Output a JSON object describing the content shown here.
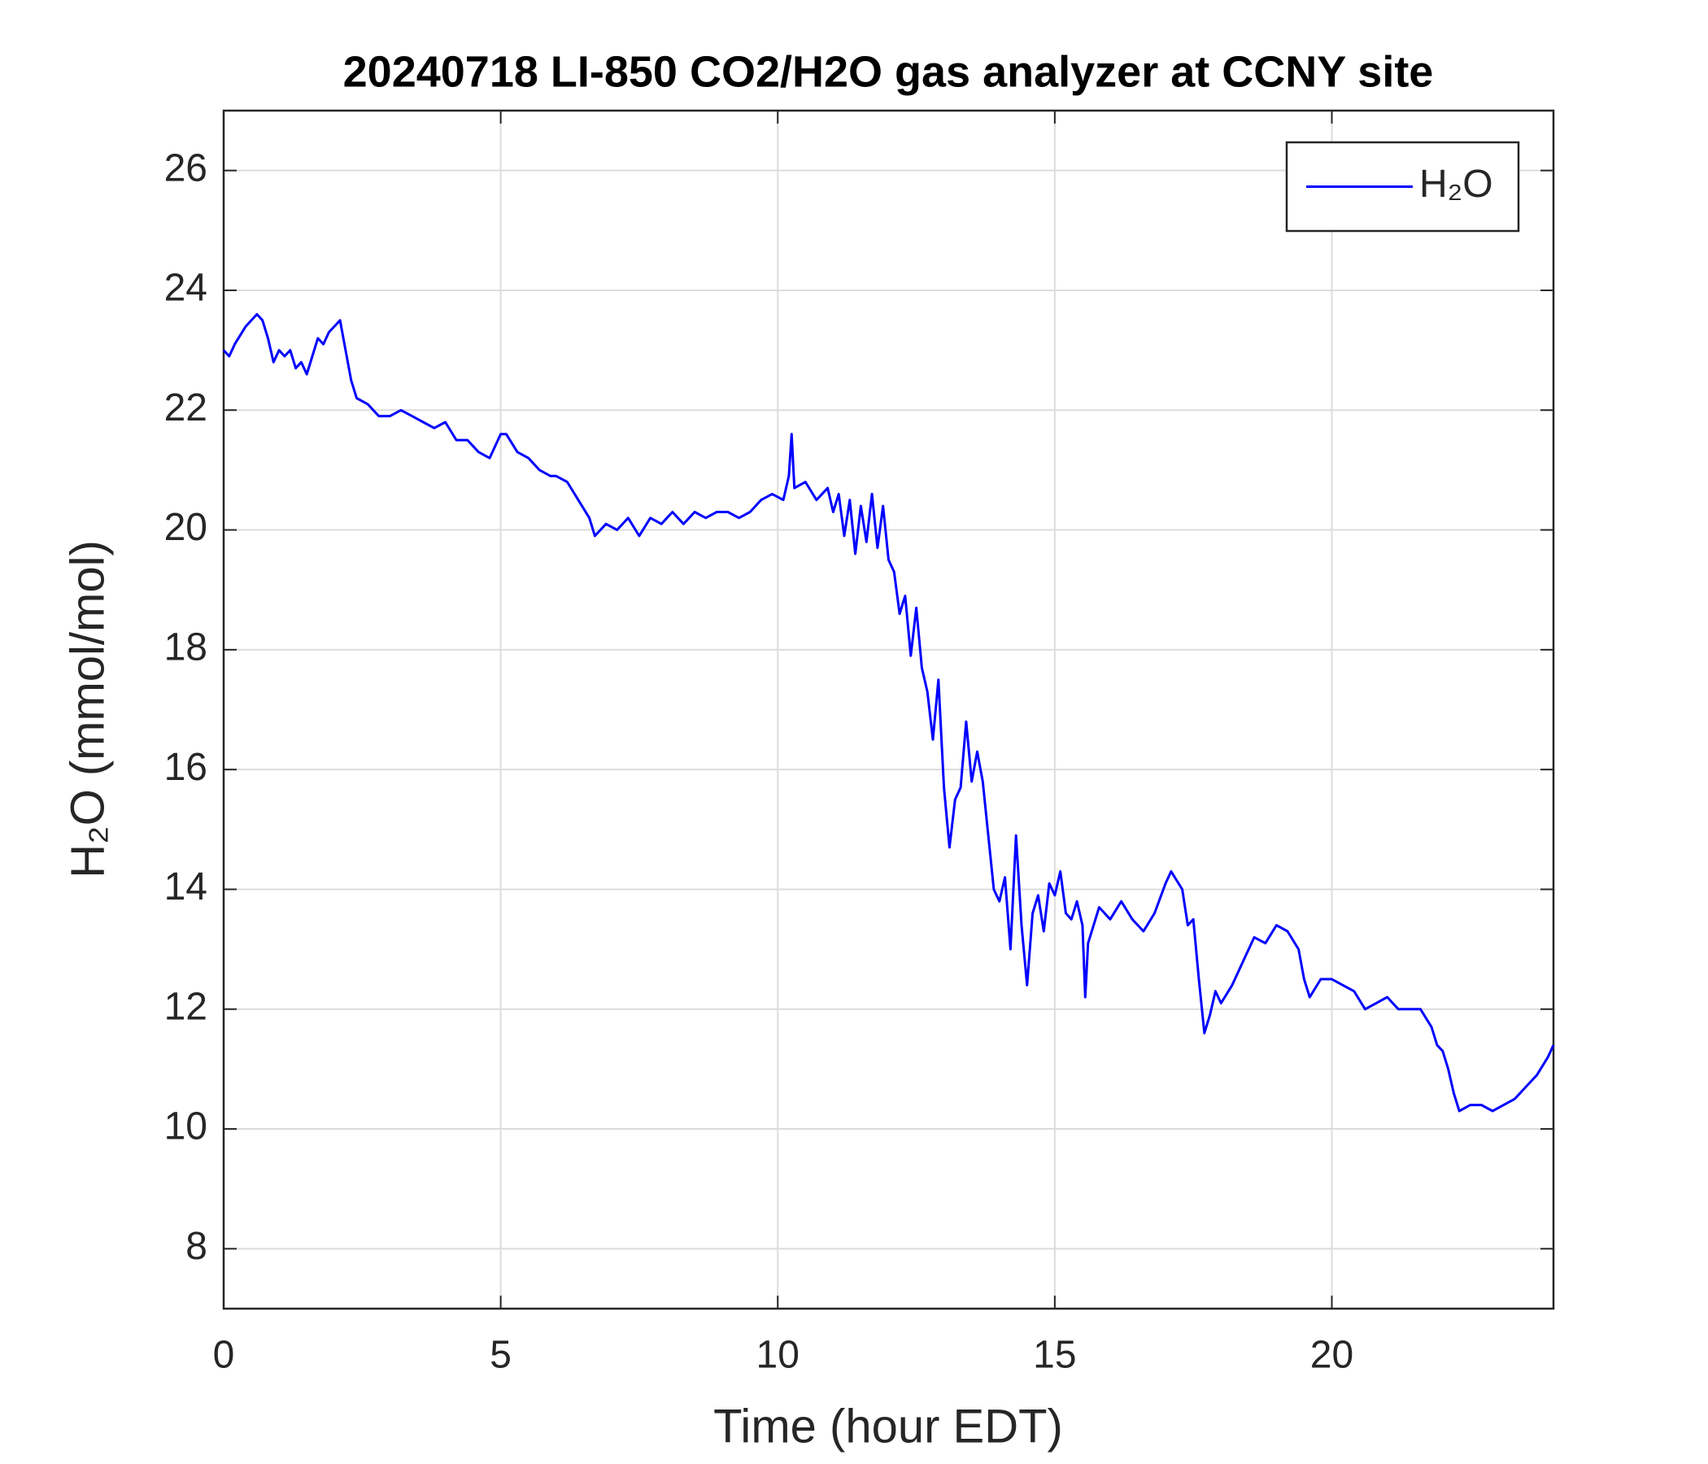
{
  "chart_data": {
    "type": "line",
    "title": "20240718 LI-850 CO2/H2O gas analyzer at CCNY site",
    "xlabel": "Time (hour EDT)",
    "ylabel": "H₂O (mmol/mol)",
    "xlim": [
      0,
      24
    ],
    "ylim": [
      7,
      27
    ],
    "xticks": [
      0,
      5,
      10,
      15,
      20
    ],
    "yticks": [
      8,
      10,
      12,
      14,
      16,
      18,
      20,
      22,
      24,
      26
    ],
    "grid": true,
    "legend": "upper right",
    "x": [
      0,
      0.1,
      0.2,
      0.4,
      0.6,
      0.7,
      0.8,
      0.9,
      1.0,
      1.1,
      1.2,
      1.3,
      1.4,
      1.5,
      1.6,
      1.7,
      1.8,
      1.9,
      2.0,
      2.1,
      2.2,
      2.3,
      2.4,
      2.6,
      2.8,
      3.0,
      3.2,
      3.4,
      3.6,
      3.8,
      4.0,
      4.2,
      4.4,
      4.6,
      4.8,
      5.0,
      5.1,
      5.3,
      5.5,
      5.7,
      5.9,
      6.0,
      6.2,
      6.4,
      6.6,
      6.7,
      6.9,
      7.1,
      7.3,
      7.5,
      7.7,
      7.9,
      8.1,
      8.3,
      8.5,
      8.7,
      8.9,
      9.1,
      9.3,
      9.5,
      9.7,
      9.9,
      10.1,
      10.2,
      10.25,
      10.3,
      10.5,
      10.7,
      10.9,
      11.0,
      11.1,
      11.2,
      11.3,
      11.4,
      11.5,
      11.6,
      11.7,
      11.8,
      11.9,
      12.0,
      12.1,
      12.2,
      12.3,
      12.4,
      12.5,
      12.6,
      12.7,
      12.8,
      12.9,
      13.0,
      13.1,
      13.2,
      13.3,
      13.4,
      13.5,
      13.6,
      13.7,
      13.8,
      13.9,
      14.0,
      14.1,
      14.2,
      14.3,
      14.4,
      14.5,
      14.6,
      14.7,
      14.8,
      14.9,
      15.0,
      15.1,
      15.2,
      15.3,
      15.4,
      15.5,
      15.55,
      15.6,
      15.8,
      16.0,
      16.2,
      16.4,
      16.6,
      16.8,
      17.0,
      17.1,
      17.3,
      17.4,
      17.5,
      17.6,
      17.7,
      17.8,
      17.9,
      18.0,
      18.2,
      18.4,
      18.6,
      18.8,
      19.0,
      19.2,
      19.4,
      19.5,
      19.6,
      19.8,
      20.0,
      20.2,
      20.4,
      20.6,
      20.8,
      21.0,
      21.2,
      21.4,
      21.6,
      21.8,
      21.9,
      22.0,
      22.1,
      22.2,
      22.3,
      22.5,
      22.7,
      22.9,
      23.1,
      23.3,
      23.5,
      23.7,
      23.9,
      24.0
    ],
    "series": [
      {
        "name": "H₂O",
        "color": "#0000ff",
        "values": [
          23.0,
          22.9,
          23.1,
          23.4,
          23.6,
          23.5,
          23.2,
          22.8,
          23.0,
          22.9,
          23.0,
          22.7,
          22.8,
          22.6,
          22.9,
          23.2,
          23.1,
          23.3,
          23.4,
          23.5,
          23.0,
          22.5,
          22.2,
          22.1,
          21.9,
          21.9,
          22.0,
          21.9,
          21.8,
          21.7,
          21.8,
          21.5,
          21.5,
          21.3,
          21.2,
          21.6,
          21.6,
          21.3,
          21.2,
          21.0,
          20.9,
          20.9,
          20.8,
          20.5,
          20.2,
          19.9,
          20.1,
          20.0,
          20.2,
          19.9,
          20.2,
          20.1,
          20.3,
          20.1,
          20.3,
          20.2,
          20.3,
          20.3,
          20.2,
          20.3,
          20.5,
          20.6,
          20.5,
          20.9,
          21.6,
          20.7,
          20.8,
          20.5,
          20.7,
          20.3,
          20.6,
          19.9,
          20.5,
          19.6,
          20.4,
          19.8,
          20.6,
          19.7,
          20.4,
          19.5,
          19.3,
          18.6,
          18.9,
          17.9,
          18.7,
          17.7,
          17.3,
          16.5,
          17.5,
          15.7,
          14.7,
          15.5,
          15.7,
          16.8,
          15.8,
          16.3,
          15.8,
          14.9,
          14.0,
          13.8,
          14.2,
          13.0,
          14.9,
          13.4,
          12.4,
          13.6,
          13.9,
          13.3,
          14.1,
          13.9,
          14.3,
          13.6,
          13.5,
          13.8,
          13.4,
          12.2,
          13.1,
          13.7,
          13.5,
          13.8,
          13.5,
          13.3,
          13.6,
          14.1,
          14.3,
          14.0,
          13.4,
          13.5,
          12.5,
          11.6,
          11.9,
          12.3,
          12.1,
          12.4,
          12.8,
          13.2,
          13.1,
          13.4,
          13.3,
          13.0,
          12.5,
          12.2,
          12.5,
          12.5,
          12.4,
          12.3,
          12.0,
          12.1,
          12.2,
          12.0,
          12.0,
          12.0,
          11.7,
          11.4,
          11.3,
          11.0,
          10.6,
          10.3,
          10.4,
          10.4,
          10.3,
          10.4,
          10.5,
          10.7,
          10.9,
          11.2,
          11.4
        ]
      }
    ]
  }
}
